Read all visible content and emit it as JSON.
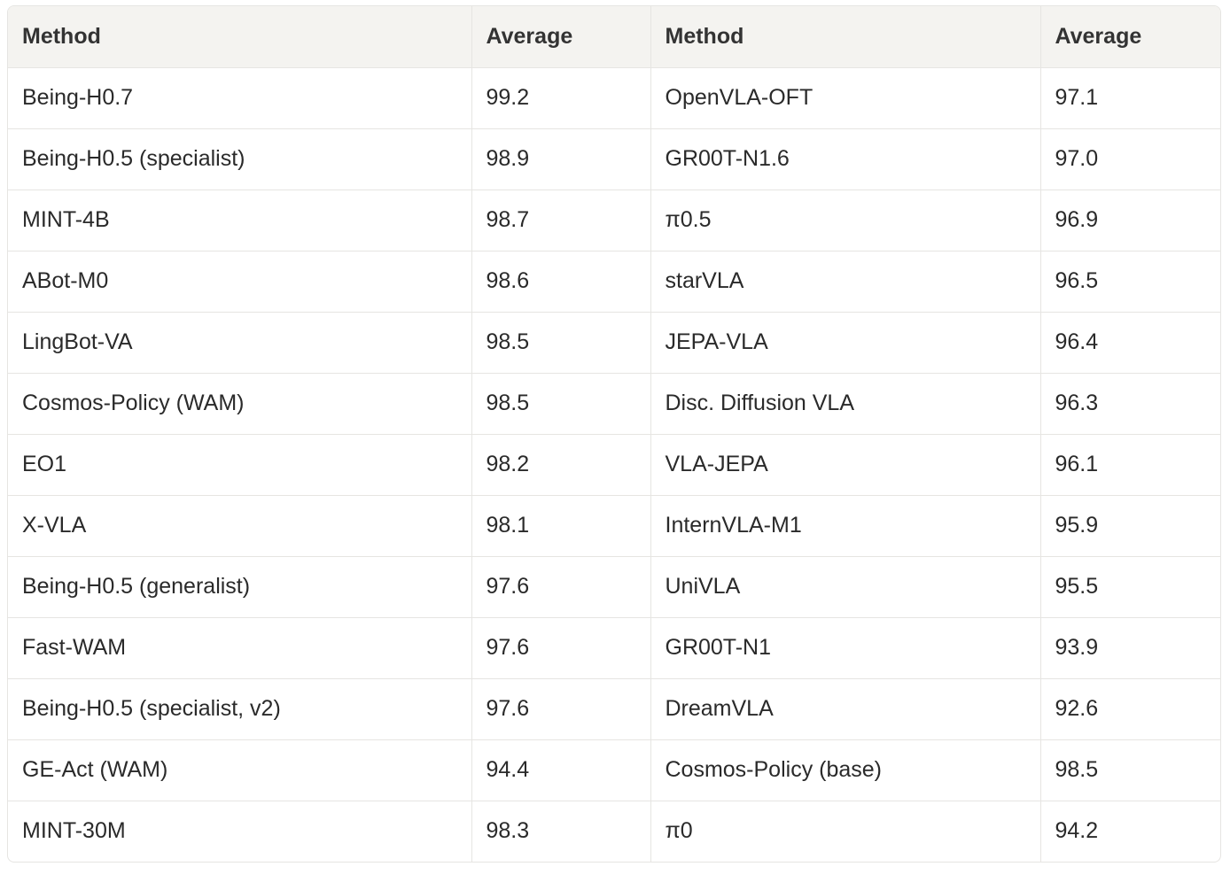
{
  "table": {
    "header": [
      "Method",
      "Average",
      "Method",
      "Average"
    ],
    "rows": [
      [
        "Being-H0.7",
        "99.2",
        "OpenVLA-OFT",
        "97.1"
      ],
      [
        "Being-H0.5 (specialist)",
        "98.9",
        "GR00T-N1.6",
        "97.0"
      ],
      [
        "MINT-4B",
        "98.7",
        "π0.5",
        "96.9"
      ],
      [
        "ABot-M0",
        "98.6",
        "starVLA",
        "96.5"
      ],
      [
        "LingBot-VA",
        "98.5",
        "JEPA-VLA",
        "96.4"
      ],
      [
        "Cosmos-Policy (WAM)",
        "98.5",
        "Disc. Diffusion VLA",
        "96.3"
      ],
      [
        "EO1",
        "98.2",
        "VLA-JEPA",
        "96.1"
      ],
      [
        "X-VLA",
        "98.1",
        "InternVLA-M1",
        "95.9"
      ],
      [
        "Being-H0.5 (generalist)",
        "97.6",
        "UniVLA",
        "95.5"
      ],
      [
        "Fast-WAM",
        "97.6",
        "GR00T-N1",
        "93.9"
      ],
      [
        "Being-H0.5 (specialist, v2)",
        "97.6",
        "DreamVLA",
        "92.6"
      ],
      [
        "GE-Act (WAM)",
        "94.4",
        "Cosmos-Policy (base)",
        "98.5"
      ],
      [
        "MINT-30M",
        "98.3",
        "π0",
        "94.2"
      ]
    ]
  }
}
